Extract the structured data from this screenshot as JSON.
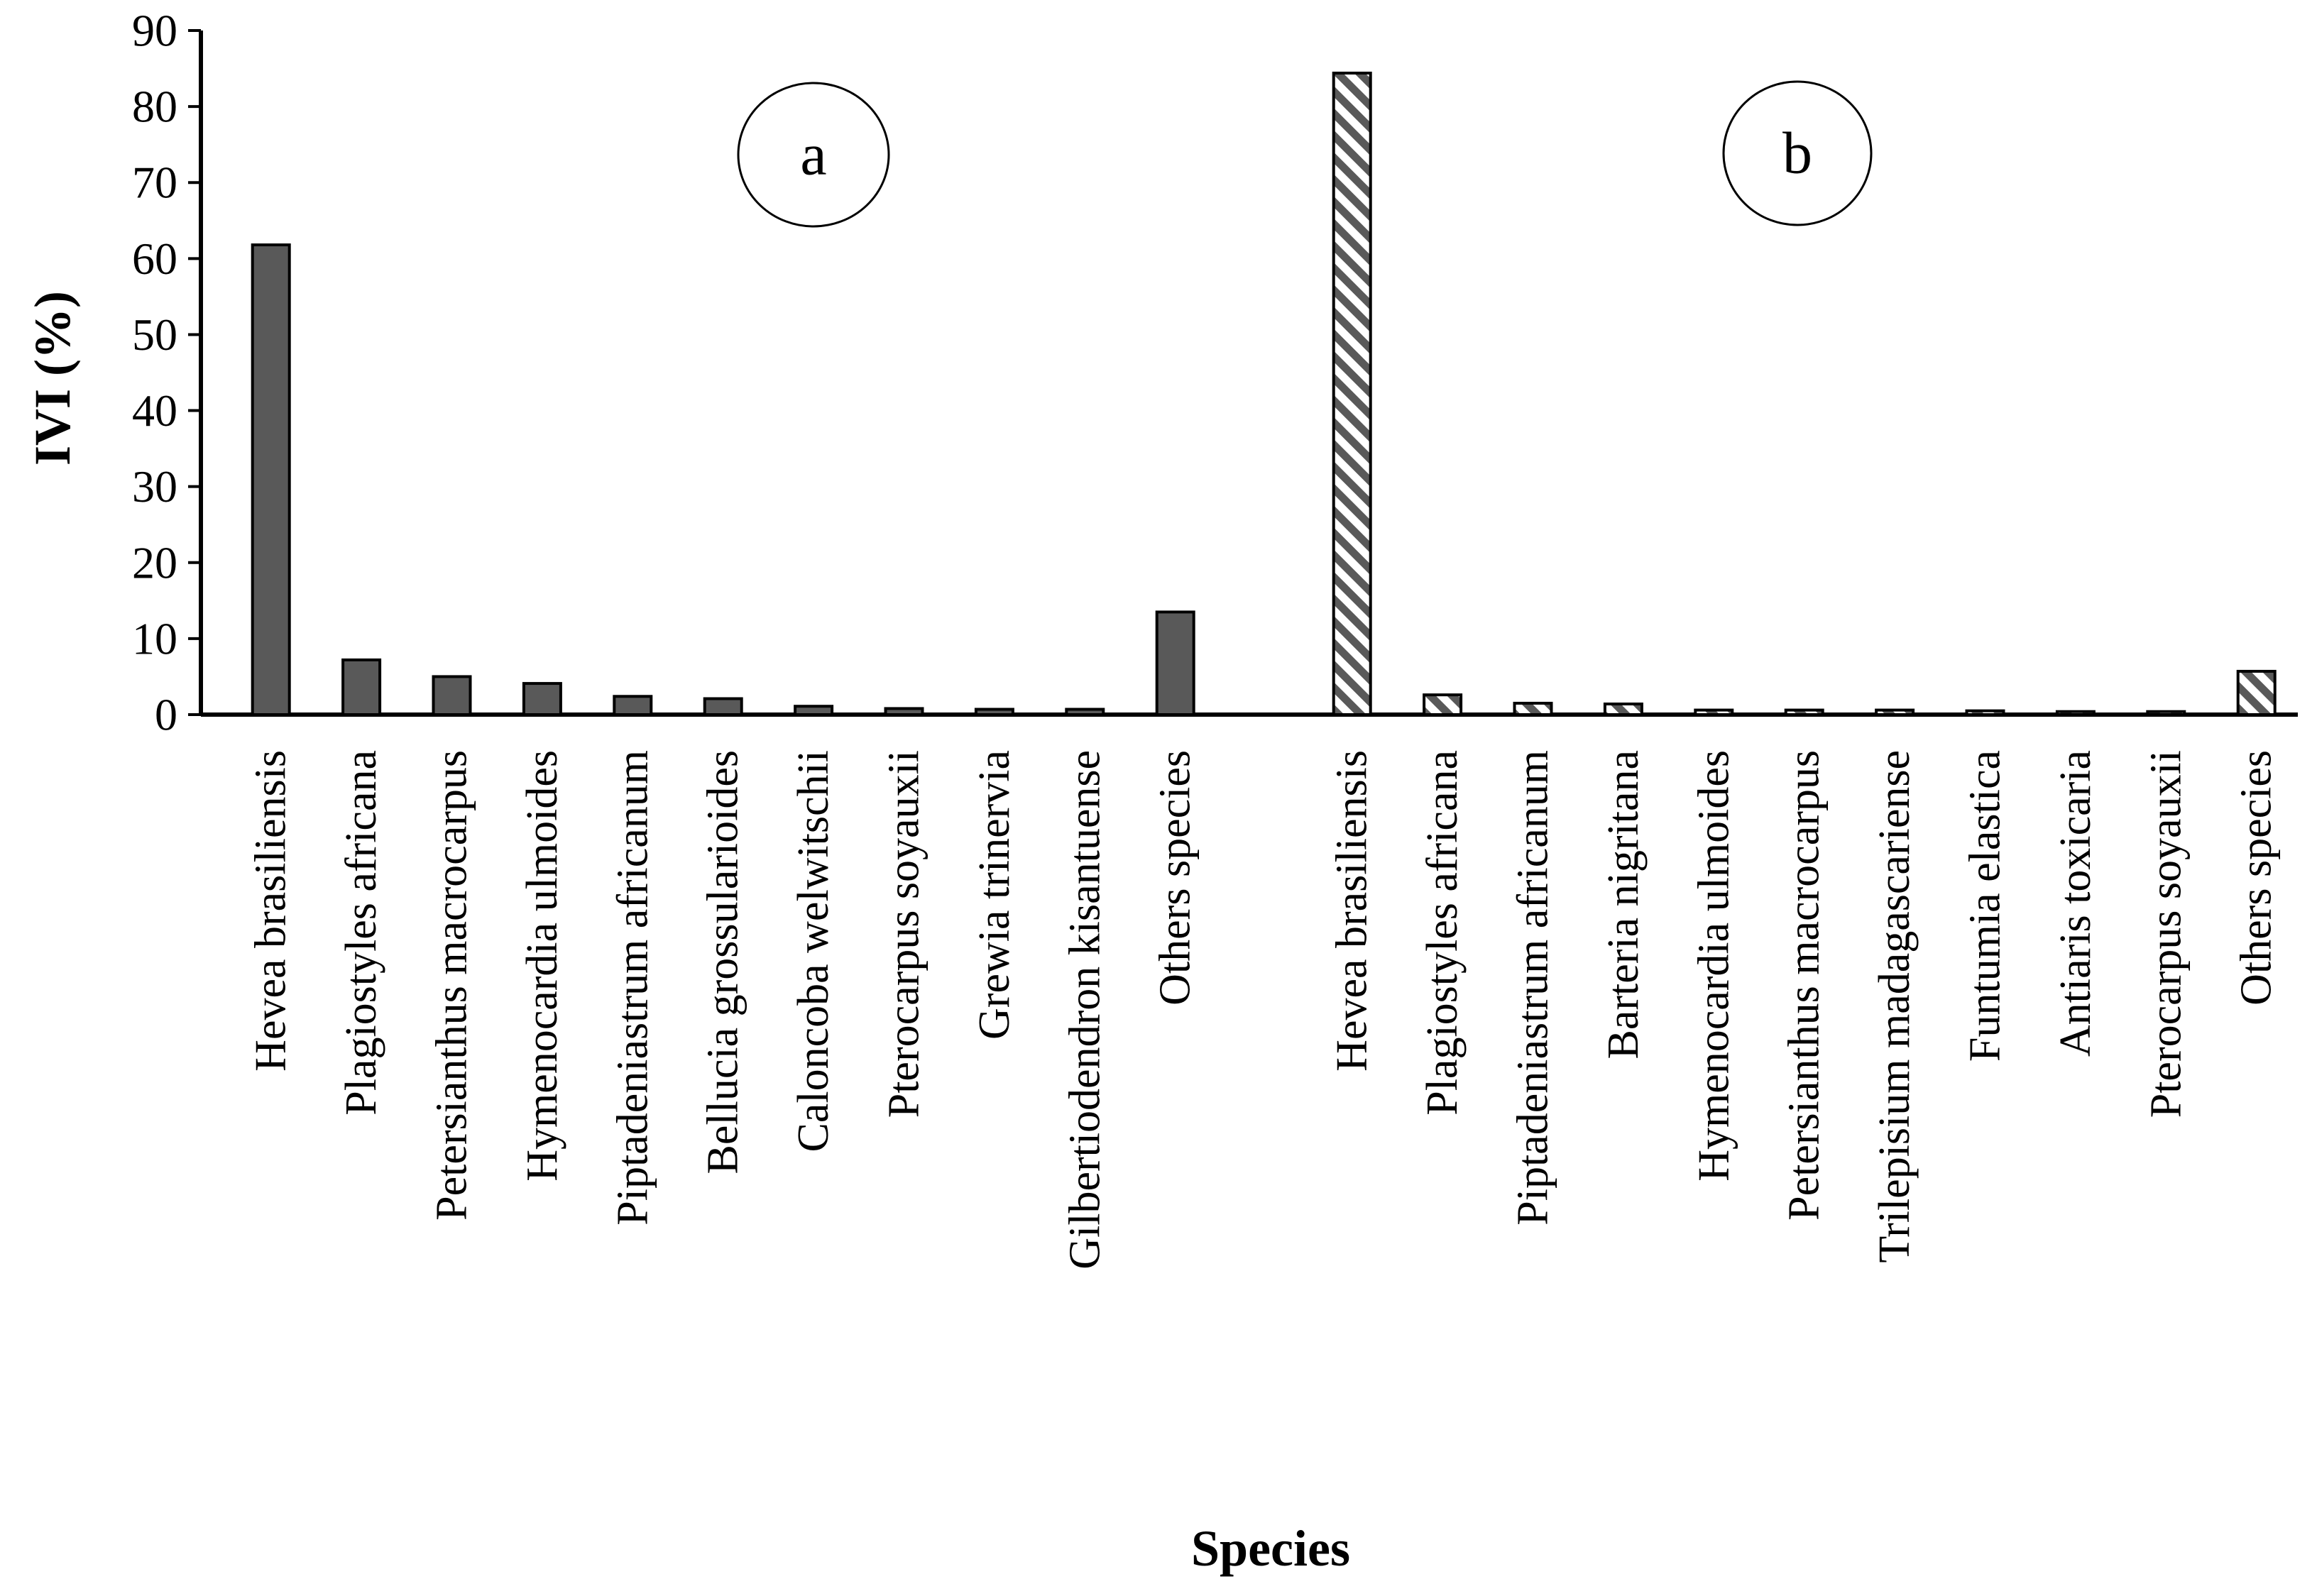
{
  "chart_data": {
    "type": "bar",
    "title": "",
    "xlabel": "Species",
    "ylabel": "IVI (%)",
    "ylim": [
      0,
      90
    ],
    "yticks": [
      0,
      10,
      20,
      30,
      40,
      50,
      60,
      70,
      80,
      90
    ],
    "grid": false,
    "colors": {
      "solid_fill": "#595959",
      "hatch_stroke": "#595959",
      "outline": "#000000",
      "hatch_background": "#ffffff"
    },
    "series": [
      {
        "name": "a",
        "panel_label": "a",
        "fill": "solid",
        "categories": [
          "Hevea brasiliensis",
          "Plagiostyles africana",
          "Petersianthus macrocarpus",
          "Hymenocardia ulmoides",
          "Piptadeniastrum africanum",
          "Bellucia grossularioides",
          "Caloncoba welwitschii",
          "Pterocarpus soyauxii",
          "Grewia trinervia",
          "Gilbertiodendron kisantuense",
          "Others species"
        ],
        "values": [
          61.8,
          7.2,
          5.0,
          4.1,
          2.4,
          2.1,
          1.1,
          0.8,
          0.7,
          0.7,
          13.5
        ]
      },
      {
        "name": "b",
        "panel_label": "b",
        "fill": "hatched",
        "categories": [
          "Hevea brasiliensis",
          "Plagiostyles africana",
          "Piptadeniastrum africanum",
          "Barteria nigritana",
          "Hymenocardia ulmoides",
          "Petersianthus macrocarpus",
          "Trilepisium madagascariense",
          "Funtumia elastica",
          "Antiaris toxicaria",
          "Pterocarpus soyauxii",
          "Others species"
        ],
        "values": [
          84.4,
          2.6,
          1.5,
          1.4,
          0.6,
          0.6,
          0.6,
          0.5,
          0.4,
          0.4,
          5.7
        ]
      }
    ]
  }
}
